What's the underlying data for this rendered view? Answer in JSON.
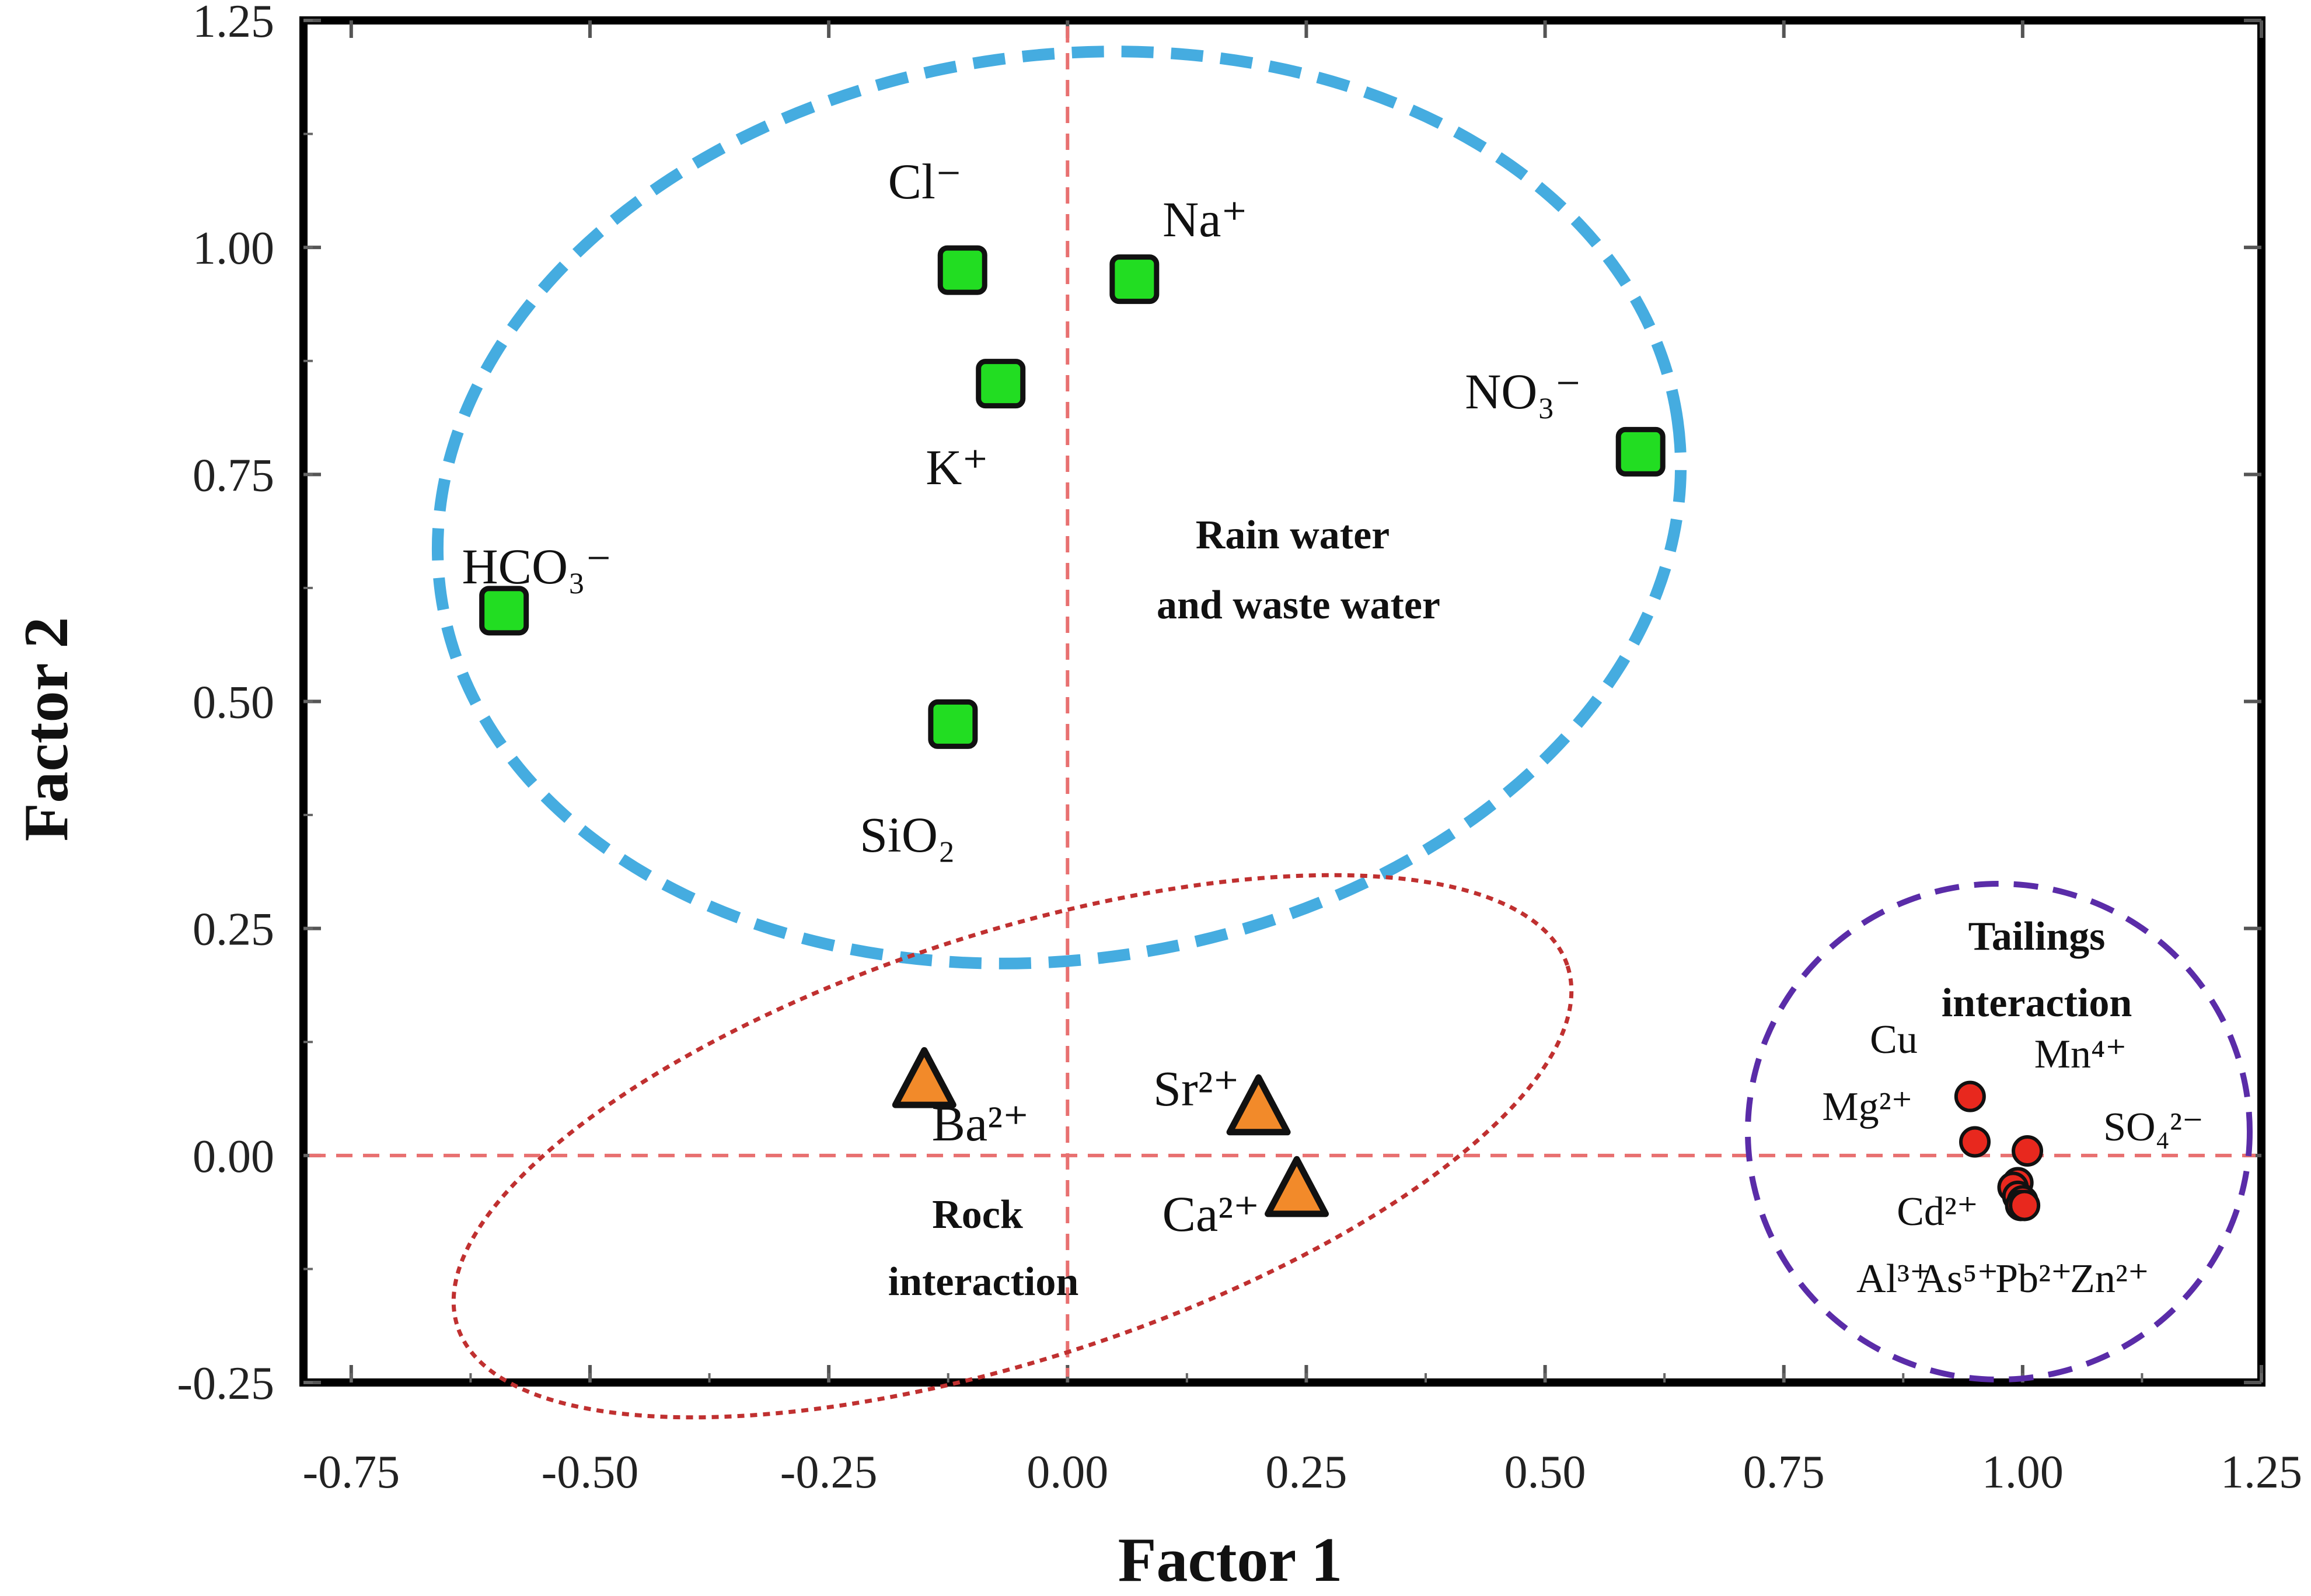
{
  "chart_data": {
    "type": "scatter",
    "title": "",
    "xlabel": "Factor 1",
    "ylabel": "Factor 2",
    "xlim": [
      -0.8,
      1.25
    ],
    "ylim": [
      -0.25,
      1.25
    ],
    "x_ticks": [
      -0.75,
      -0.5,
      -0.25,
      0.0,
      0.25,
      0.5,
      0.75,
      1.0,
      1.25
    ],
    "y_ticks": [
      -0.25,
      0.0,
      0.25,
      0.5,
      0.75,
      1.0,
      1.25
    ],
    "x_tick_labels": [
      "-0.75",
      "-0.50",
      "-0.25",
      "0.00",
      "0.25",
      "0.50",
      "0.75",
      "1.00",
      "1.25"
    ],
    "y_tick_labels": [
      "-0.25",
      "0.00",
      "0.25",
      "0.50",
      "0.75",
      "1.00",
      "1.25"
    ],
    "reference_lines": {
      "x": 0.0,
      "y": 0.0
    },
    "series": [
      {
        "name": "Rain water and waste water",
        "marker": "square",
        "color": "#22dd22",
        "points": [
          {
            "label": "Cl⁻",
            "x": -0.11,
            "y": 0.975
          },
          {
            "label": "Na⁺",
            "x": 0.07,
            "y": 0.965
          },
          {
            "label": "K⁺",
            "x": -0.07,
            "y": 0.85
          },
          {
            "label": "NO₃⁻",
            "x": 0.6,
            "y": 0.775
          },
          {
            "label": "HCO₃⁻",
            "x": -0.59,
            "y": 0.6
          },
          {
            "label": "SiO₂",
            "x": -0.12,
            "y": 0.475
          }
        ]
      },
      {
        "name": "Rock interaction",
        "marker": "triangle",
        "color": "#f28a2a",
        "points": [
          {
            "label": "Ba²⁺",
            "x": -0.15,
            "y": 0.08
          },
          {
            "label": "Sr²⁺",
            "x": 0.2,
            "y": 0.05
          },
          {
            "label": "Ca²⁺",
            "x": 0.24,
            "y": -0.04
          }
        ]
      },
      {
        "name": "Tailings interaction",
        "marker": "circle",
        "color": "#e8281e",
        "points": [
          {
            "label": "Cu",
            "x": 0.945,
            "y": 0.065
          },
          {
            "label": "Mg²⁺",
            "x": 0.95,
            "y": 0.015
          },
          {
            "label": "Mn⁴⁺",
            "x": 1.005,
            "y": 0.005
          },
          {
            "label": "SO₄²⁻",
            "x": 0.995,
            "y": -0.03
          },
          {
            "label": "Cd²⁺",
            "x": 0.99,
            "y": -0.035
          },
          {
            "label": "Al³⁺",
            "x": 0.995,
            "y": -0.045
          },
          {
            "label": "As⁵⁺",
            "x": 1.0,
            "y": -0.05
          },
          {
            "label": "Pb²⁺",
            "x": 0.998,
            "y": -0.055
          },
          {
            "label": "Zn²⁺",
            "x": 1.002,
            "y": -0.055
          }
        ]
      }
    ],
    "group_labels": {
      "rain": [
        "Rain water",
        "and waste water"
      ],
      "rock": [
        "Rock",
        "interaction"
      ],
      "tailings": [
        "Tailings",
        "interaction"
      ]
    },
    "group_colors": {
      "rain": "#45ace0",
      "rock": "#c03030",
      "tailings": "#5a2ca8",
      "reference": "#e87070"
    }
  }
}
